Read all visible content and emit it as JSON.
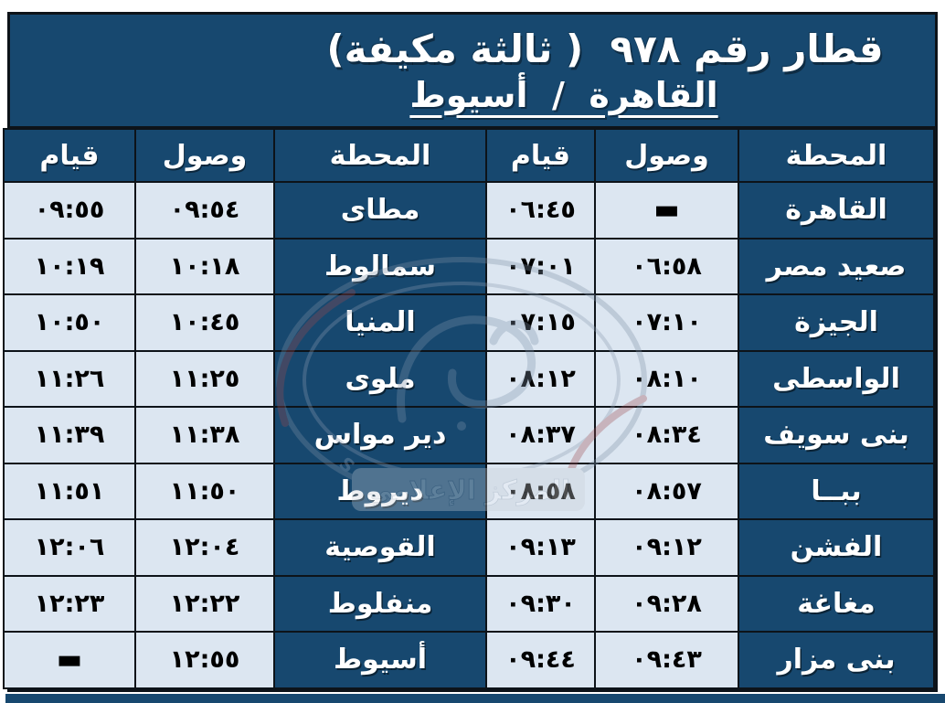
{
  "title": {
    "line1": "قطار رقم ٩٧٨  ( ثالثة مكيفة)",
    "line2": "القاهرة  /  أسيوط"
  },
  "column_headers": {
    "station": "المحطة",
    "arrival": "وصول",
    "departure": "قيام"
  },
  "colors": {
    "dark_blue": "#17486F",
    "light_cell": "#DCE6F1",
    "grid_line": "#0D1319",
    "title_text": "#FFFFFF",
    "time_text": "#000000",
    "page_bg": "#FFFFFF"
  },
  "no_stop_marker": "▬",
  "rows": [
    {
      "leg1": {
        "station": "القاهرة",
        "arrival": "▬",
        "departure": "٠٦:٤٥"
      },
      "leg2": {
        "station": "مطاى",
        "arrival": "٠٩:٥٤",
        "departure": "٠٩:٥٥"
      }
    },
    {
      "leg1": {
        "station": "صعيد مصر",
        "arrival": "٠٦:٥٨",
        "departure": "٠٧:٠١"
      },
      "leg2": {
        "station": "سمالوط",
        "arrival": "١٠:١٨",
        "departure": "١٠:١٩"
      }
    },
    {
      "leg1": {
        "station": "الجيزة",
        "arrival": "٠٧:١٠",
        "departure": "٠٧:١٥"
      },
      "leg2": {
        "station": "المنيا",
        "arrival": "١٠:٤٥",
        "departure": "١٠:٥٠"
      }
    },
    {
      "leg1": {
        "station": "الواسطى",
        "arrival": "٠٨:١٠",
        "departure": "٠٨:١٢"
      },
      "leg2": {
        "station": "ملوى",
        "arrival": "١١:٢٥",
        "departure": "١١:٢٦"
      }
    },
    {
      "leg1": {
        "station": "بنى سويف",
        "arrival": "٠٨:٣٤",
        "departure": "٠٨:٣٧"
      },
      "leg2": {
        "station": "دير مواس",
        "arrival": "١١:٣٨",
        "departure": "١١:٣٩"
      }
    },
    {
      "leg1": {
        "station": "ببــا",
        "arrival": "٠٨:٥٧",
        "departure": "٠٨:٥٨"
      },
      "leg2": {
        "station": "ديروط",
        "arrival": "١١:٥٠",
        "departure": "١١:٥١"
      }
    },
    {
      "leg1": {
        "station": "الفشن",
        "arrival": "٠٩:١٢",
        "departure": "٠٩:١٣"
      },
      "leg2": {
        "station": "القوصية",
        "arrival": "١٢:٠٤",
        "departure": "١٢:٠٦"
      }
    },
    {
      "leg1": {
        "station": "مغاغة",
        "arrival": "٠٩:٢٨",
        "departure": "٠٩:٣٠"
      },
      "leg2": {
        "station": "منفلوط",
        "arrival": "١٢:٢٢",
        "departure": "١٢:٢٣"
      }
    },
    {
      "leg1": {
        "station": "بنى مزار",
        "arrival": "٠٩:٤٣",
        "departure": "٠٩:٤٤"
      },
      "leg2": {
        "station": "أسيوط",
        "arrival": "١٢:٥٥",
        "departure": "▬"
      }
    }
  ],
  "watermark": {
    "en": "EGYPTIAN RAILWAYS",
    "ar": "المركز الإعلامي"
  }
}
